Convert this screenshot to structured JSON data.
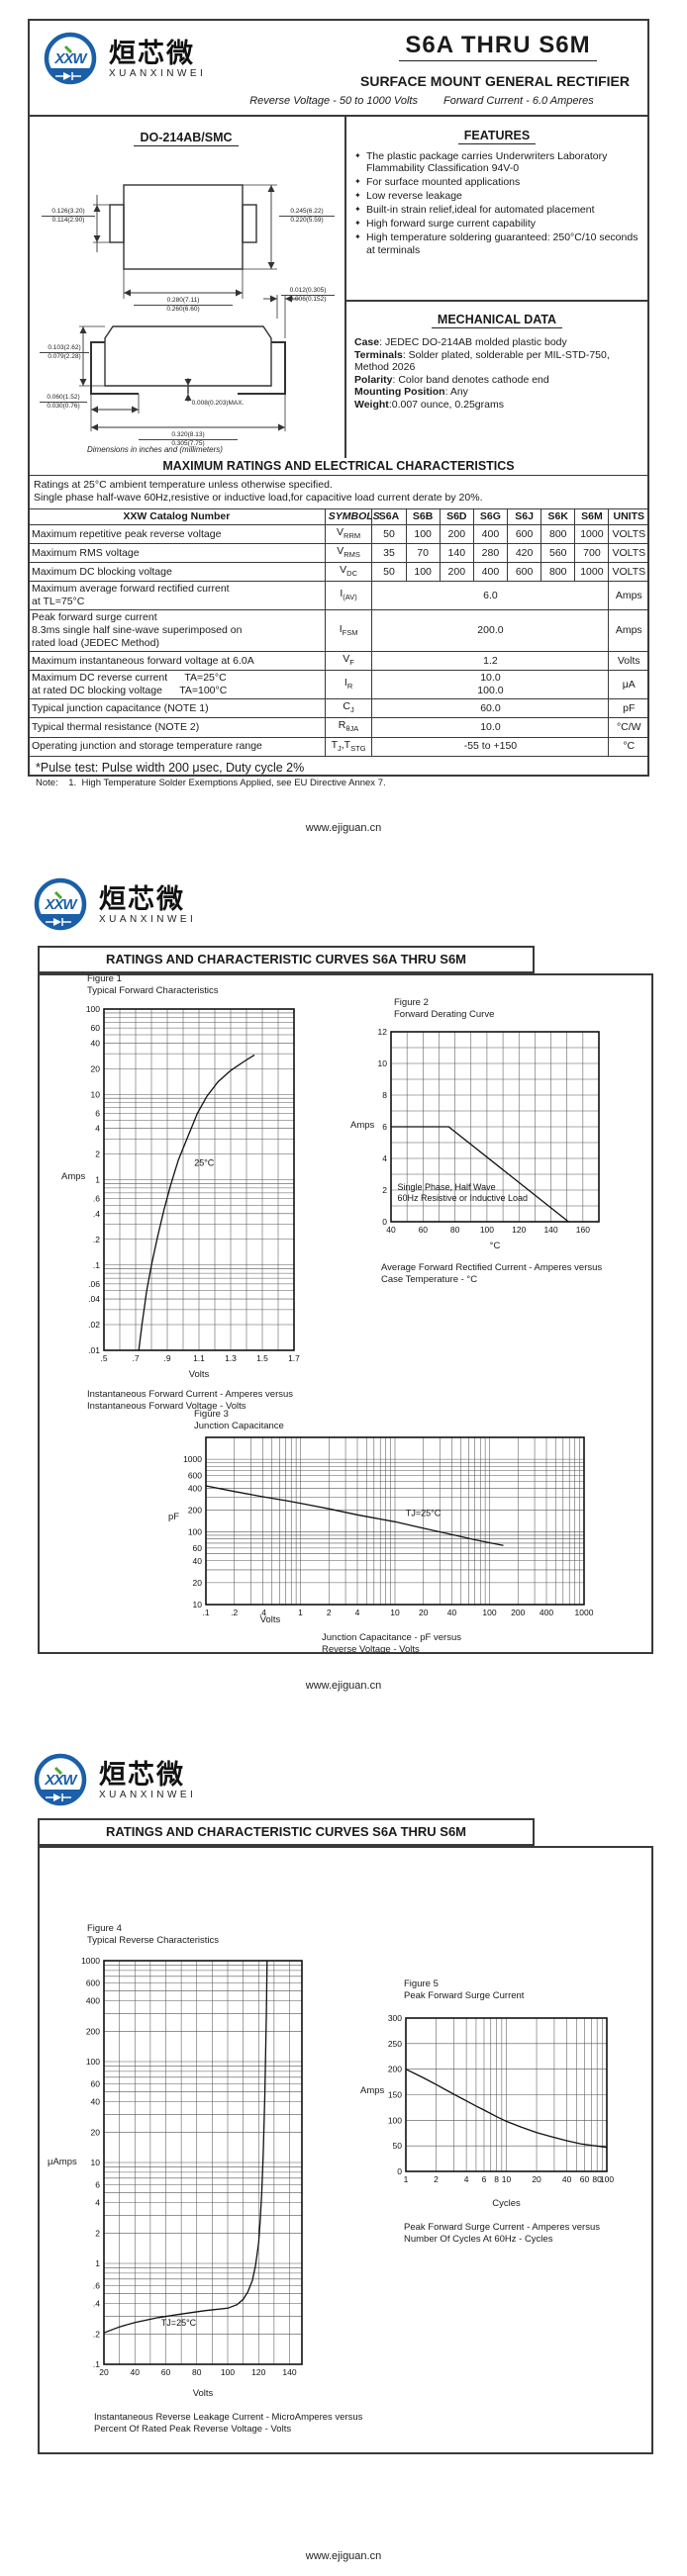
{
  "site_footer": "www.ejiguan.cn",
  "brand": {
    "logo_text": "XXW",
    "cn_name": "烜芯微",
    "en_name": "XUANXINWEI",
    "blue": "#1a5fa8",
    "green": "#4aa832"
  },
  "header": {
    "part_range": "S6A THRU S6M",
    "subtitle": "SURFACE MOUNT GENERAL RECTIFIER",
    "tagline_left": "Reverse Voltage - 50 to 1000 Volts",
    "tagline_right": "Forward Current - 6.0 Amperes"
  },
  "package": {
    "name": "DO-214AB/SMC",
    "bullet_icon": "✦",
    "dims": {
      "top_left": [
        "0.126(3.20)",
        "0.114(2.90)"
      ],
      "top_right": [
        "0.245(6.22)",
        "0.220(5.59)"
      ],
      "top_bottom": [
        "0.280(7.11)",
        "0.260(6.60)"
      ],
      "side_lead": [
        "0.012(0.305)",
        "0.006(0.152)"
      ],
      "side_height": [
        "0.103(2.62)",
        "0.079(2.28)"
      ],
      "side_foot": [
        "0.060(1.52)",
        "0.030(0.76)"
      ],
      "side_standoff": "0.008(0.203)MAX.",
      "side_width": [
        "0.320(8.13)",
        "0.305(7.75)"
      ]
    },
    "note": "Dimensions in inches and (millimeters)"
  },
  "features": {
    "title": "FEATURES",
    "items": [
      "The plastic package carries Underwriters Laboratory Flammability Classification 94V-0",
      "For surface mounted applications",
      "Low reverse leakage",
      "Built-in strain relief,ideal for automated placement",
      "High forward surge current capability",
      "High temperature soldering guaranteed: 250°C/10 seconds at terminals"
    ]
  },
  "mechanical": {
    "title": "MECHANICAL DATA",
    "lines": [
      {
        "label": "Case",
        "text": ": JEDEC DO-214AB molded plastic body"
      },
      {
        "label": "Terminals",
        "text": ": Solder plated, solderable per MIL-STD-750, Method 2026"
      },
      {
        "label": "Polarity",
        "text": ": Color band denotes cathode end"
      },
      {
        "label": "Mounting Position",
        "text": ": Any"
      },
      {
        "label": "Weight",
        "text": ":0.007 ounce, 0.25grams"
      }
    ]
  },
  "ratings": {
    "title": "MAXIMUM RATINGS AND ELECTRICAL CHARACTERISTICS",
    "note1": "Ratings at 25°C ambient temperature unless otherwise specified.",
    "note2": "Single phase half-wave 60Hz,resistive or inductive load,for capacitive load current derate by 20%.",
    "col_header": {
      "catalog": "XXW Catalog  Number",
      "symbols": "SYMBOLS",
      "parts": [
        "S6A",
        "S6B",
        "S6D",
        "S6G",
        "S6J",
        "S6K",
        "S6M"
      ],
      "units": "UNITS"
    },
    "rows": [
      {
        "label": [
          "Maximum repetitive peak reverse voltage"
        ],
        "sym": [
          {
            "text": "V"
          },
          {
            "text": "RRM",
            "sub": true
          }
        ],
        "values": [
          "50",
          "100",
          "200",
          "400",
          "600",
          "800",
          "1000"
        ],
        "units": "VOLTS"
      },
      {
        "label": [
          "Maximum RMS voltage"
        ],
        "sym": [
          {
            "text": "V"
          },
          {
            "text": "RMS",
            "sub": true
          }
        ],
        "values": [
          "35",
          "70",
          "140",
          "280",
          "420",
          "560",
          "700"
        ],
        "units": "VOLTS"
      },
      {
        "label": [
          "Maximum DC blocking voltage"
        ],
        "sym": [
          {
            "text": "V"
          },
          {
            "text": "DC",
            "sub": true
          }
        ],
        "values": [
          "50",
          "100",
          "200",
          "400",
          "600",
          "800",
          "1000"
        ],
        "units": "VOLTS"
      },
      {
        "label": [
          "Maximum average forward rectified current",
          "at TL=75°C"
        ],
        "sym": [
          {
            "text": "I"
          },
          {
            "text": "(AV)",
            "sub": true
          }
        ],
        "span": [
          "6.0"
        ],
        "units": "Amps"
      },
      {
        "label": [
          "Peak forward surge current",
          "8.3ms single half sine-wave superimposed on",
          "rated load (JEDEC Method)"
        ],
        "sym": [
          {
            "text": "I"
          },
          {
            "text": "FSM",
            "sub": true
          }
        ],
        "span": [
          "200.0"
        ],
        "units": "Amps"
      },
      {
        "label": [
          "Maximum instantaneous forward voltage at 6.0A"
        ],
        "sym": [
          {
            "text": "V"
          },
          {
            "text": "F",
            "sub": true
          }
        ],
        "span": [
          "1.2"
        ],
        "units": "Volts"
      },
      {
        "label": [
          "Maximum DC reverse current      TA=25°C",
          "at rated DC blocking voltage      TA=100°C"
        ],
        "sym": [
          {
            "text": "I"
          },
          {
            "text": "R",
            "sub": true
          }
        ],
        "span": [
          "10.0",
          "100.0"
        ],
        "units": "μA"
      },
      {
        "label": [
          "Typical junction capacitance (NOTE 1)"
        ],
        "sym": [
          {
            "text": "C"
          },
          {
            "text": "J",
            "sub": true
          }
        ],
        "span": [
          "60.0"
        ],
        "units": "pF"
      },
      {
        "label": [
          "Typical thermal resistance (NOTE 2)"
        ],
        "sym": [
          {
            "text": "R"
          },
          {
            "text": "θJA",
            "sub": true
          }
        ],
        "span": [
          "10.0"
        ],
        "units": "°C/W"
      },
      {
        "label": [
          "Operating junction and storage temperature range"
        ],
        "sym": [
          {
            "text": "T"
          },
          {
            "text": "J",
            "sub": true
          },
          {
            "text": ",T"
          },
          {
            "text": "STG",
            "sub": true
          }
        ],
        "span": [
          "-55 to +150"
        ],
        "units": "°C"
      }
    ],
    "pulse_note": "*Pulse test: Pulse width 200 μsec, Duty cycle 2%",
    "note_line": "Note:    1.  High Temperature Solder Exemptions Applied, see EU Directive Annex 7."
  },
  "curves_title": "RATINGS AND CHARACTERISTIC CURVES S6A THRU S6M",
  "chart_data": [
    {
      "figure": "Figure 1",
      "title": "Typical Forward Characteristics",
      "type": "line",
      "xlabel": "Volts",
      "ylabel": "Amps",
      "xscale": "linear",
      "yscale": "log",
      "xlim": [
        0.5,
        1.7
      ],
      "ylim": [
        0.01,
        100
      ],
      "xminor": 0.1,
      "xticks": [
        [
          0.5,
          ".5"
        ],
        [
          0.7,
          ".7"
        ],
        [
          0.9,
          ".9"
        ],
        [
          1.1,
          "1.1"
        ],
        [
          1.3,
          "1.3"
        ],
        [
          1.5,
          "1.5"
        ],
        [
          1.7,
          "1.7"
        ]
      ],
      "yticks": [
        [
          100,
          "100"
        ],
        [
          60,
          "60"
        ],
        [
          40,
          "40"
        ],
        [
          20,
          "20"
        ],
        [
          10,
          "10"
        ],
        [
          6,
          "6"
        ],
        [
          4,
          "4"
        ],
        [
          2,
          "2"
        ],
        [
          1,
          "1"
        ],
        [
          0.6,
          ".6"
        ],
        [
          0.4,
          ".4"
        ],
        [
          0.2,
          ".2"
        ],
        [
          0.1,
          ".1"
        ],
        [
          0.06,
          ".06"
        ],
        [
          0.04,
          ".04"
        ],
        [
          0.02,
          ".02"
        ],
        [
          0.01,
          ".01"
        ]
      ],
      "series": [
        {
          "name": "25°C",
          "points": [
            [
              0.72,
              0.01
            ],
            [
              0.74,
              0.02
            ],
            [
              0.77,
              0.05
            ],
            [
              0.8,
              0.1
            ],
            [
              0.84,
              0.22
            ],
            [
              0.88,
              0.45
            ],
            [
              0.92,
              0.85
            ],
            [
              0.97,
              1.7
            ],
            [
              1.03,
              3.2
            ],
            [
              1.09,
              6.0
            ],
            [
              1.15,
              9.5
            ],
            [
              1.22,
              14
            ],
            [
              1.3,
              19
            ],
            [
              1.38,
              24
            ],
            [
              1.45,
              29
            ]
          ]
        }
      ],
      "labels": [
        {
          "x": 1.07,
          "y": 1.45,
          "text": "25°C"
        }
      ],
      "caption": [
        "Instantaneous Forward Current - Amperes versus",
        "Instantaneous Forward Voltage - Volts"
      ]
    },
    {
      "figure": "Figure 2",
      "title": "Forward Derating Curve",
      "type": "line",
      "xlabel": "°C",
      "ylabel": "Amps",
      "xscale": "linear",
      "yscale": "linear",
      "xlim": [
        40,
        170
      ],
      "ylim": [
        0,
        12
      ],
      "xminor": 10,
      "yminor": 1,
      "xticks": [
        [
          40,
          "40"
        ],
        [
          60,
          "60"
        ],
        [
          80,
          "80"
        ],
        [
          100,
          "100"
        ],
        [
          120,
          "120"
        ],
        [
          140,
          "140"
        ],
        [
          160,
          "160"
        ]
      ],
      "yticks": [
        [
          0,
          "0"
        ],
        [
          2,
          "2"
        ],
        [
          4,
          "4"
        ],
        [
          6,
          "6"
        ],
        [
          8,
          "8"
        ],
        [
          10,
          "10"
        ],
        [
          12,
          "12"
        ]
      ],
      "series": [
        {
          "name": "derating",
          "points": [
            [
              40,
              6
            ],
            [
              76,
              6
            ],
            [
              151,
              0
            ]
          ]
        }
      ],
      "labels": [
        {
          "x": 44,
          "y": 2.0,
          "text": "Single Phase, Half Wave"
        },
        {
          "x": 44,
          "y": 1.3,
          "text": "60Hz Resistive or Inductive Load"
        }
      ],
      "caption": [
        "Average Forward Rectified Current  -  Amperes versus",
        "Case Temperature  - °C"
      ]
    },
    {
      "figure": "Figure 3",
      "title": "Junction Capacitance",
      "type": "line",
      "xlabel": "Volts",
      "ylabel": "pF",
      "xscale": "log",
      "yscale": "log",
      "xlim": [
        0.1,
        1000
      ],
      "ylim": [
        10,
        2000
      ],
      "xticks": [
        [
          0.1,
          ".1"
        ],
        [
          0.2,
          ".2"
        ],
        [
          0.4,
          ".4"
        ],
        [
          1,
          "1"
        ],
        [
          2,
          "2"
        ],
        [
          4,
          "4"
        ],
        [
          10,
          "10"
        ],
        [
          20,
          "20"
        ],
        [
          40,
          "40"
        ],
        [
          100,
          "100"
        ],
        [
          200,
          "200"
        ],
        [
          400,
          "400"
        ],
        [
          1000,
          "1000"
        ]
      ],
      "yticks": [
        [
          1000,
          "1000"
        ],
        [
          600,
          "600"
        ],
        [
          400,
          "400"
        ],
        [
          200,
          "200"
        ],
        [
          100,
          "100"
        ],
        [
          60,
          "60"
        ],
        [
          40,
          "40"
        ],
        [
          20,
          "20"
        ],
        [
          10,
          "10"
        ]
      ],
      "series": [
        {
          "name": "TJ=25°C",
          "points": [
            [
              0.1,
              430
            ],
            [
              0.2,
              360
            ],
            [
              0.4,
              305
            ],
            [
              0.7,
              270
            ],
            [
              1,
              248
            ],
            [
              2,
              208
            ],
            [
              4,
              172
            ],
            [
              7,
              150
            ],
            [
              10,
              138
            ],
            [
              20,
              112
            ],
            [
              40,
              92
            ],
            [
              70,
              78
            ],
            [
              100,
              71
            ],
            [
              140,
              65
            ]
          ]
        }
      ],
      "labels": [
        {
          "x": 13,
          "y": 165,
          "text": "TJ=25°C"
        }
      ],
      "caption": [
        "Junction Capacitance - pF versus",
        "Reverse Voltage - Volts"
      ]
    },
    {
      "figure": "Figure 4",
      "title": "Typical Reverse Characteristics",
      "type": "line",
      "xlabel": "Volts",
      "ylabel": "μAmps",
      "xscale": "linear",
      "yscale": "log",
      "xlim": [
        20,
        148
      ],
      "ylim": [
        0.1,
        1000
      ],
      "xminor": 10,
      "xticks": [
        [
          20,
          "20"
        ],
        [
          40,
          "40"
        ],
        [
          60,
          "60"
        ],
        [
          80,
          "80"
        ],
        [
          100,
          "100"
        ],
        [
          120,
          "120"
        ],
        [
          140,
          "140"
        ]
      ],
      "yticks": [
        [
          1000,
          "1000"
        ],
        [
          600,
          "600"
        ],
        [
          400,
          "400"
        ],
        [
          200,
          "200"
        ],
        [
          100,
          "100"
        ],
        [
          60,
          "60"
        ],
        [
          40,
          "40"
        ],
        [
          20,
          "20"
        ],
        [
          10,
          "10"
        ],
        [
          6,
          "6"
        ],
        [
          4,
          "4"
        ],
        [
          2,
          "2"
        ],
        [
          1,
          "1"
        ],
        [
          0.6,
          ".6"
        ],
        [
          0.4,
          ".4"
        ],
        [
          0.2,
          ".2"
        ],
        [
          0.1,
          ".1"
        ]
      ],
      "series": [
        {
          "name": "TJ=25°C",
          "points": [
            [
              20,
              0.205
            ],
            [
              30,
              0.235
            ],
            [
              40,
              0.26
            ],
            [
              55,
              0.29
            ],
            [
              70,
              0.315
            ],
            [
              85,
              0.34
            ],
            [
              100,
              0.36
            ],
            [
              106,
              0.39
            ],
            [
              110,
              0.44
            ],
            [
              113,
              0.52
            ],
            [
              116,
              0.68
            ],
            [
              118,
              0.95
            ],
            [
              120,
              1.6
            ],
            [
              121,
              2.6
            ],
            [
              122,
              5
            ],
            [
              123,
              12
            ],
            [
              124,
              45
            ],
            [
              125,
              300
            ],
            [
              125.5,
              1000
            ]
          ]
        }
      ],
      "labels": [
        {
          "x": 57,
          "y": 0.24,
          "text": "TJ=25°C"
        }
      ],
      "caption": [
        "Instantaneous Reverse Leakage Current - MicroAmperes versus",
        "Percent Of Rated Peak Reverse Voltage - Volts"
      ]
    },
    {
      "figure": "Figure 5",
      "title": "Peak Forward Surge Current",
      "type": "line",
      "xlabel": "Cycles",
      "ylabel": "Amps",
      "xscale": "log",
      "yscale": "linear",
      "xlim": [
        1,
        100
      ],
      "ylim": [
        0,
        300
      ],
      "yminor": 50,
      "xticks": [
        [
          1,
          "1"
        ],
        [
          2,
          "2"
        ],
        [
          4,
          "4"
        ],
        [
          6,
          "6"
        ],
        [
          8,
          "8"
        ],
        [
          10,
          "10"
        ],
        [
          20,
          "20"
        ],
        [
          40,
          "40"
        ],
        [
          60,
          "60"
        ],
        [
          80,
          "80"
        ],
        [
          100,
          "100"
        ]
      ],
      "yticks": [
        [
          0,
          "0"
        ],
        [
          50,
          "50"
        ],
        [
          100,
          "100"
        ],
        [
          150,
          "150"
        ],
        [
          200,
          "200"
        ],
        [
          250,
          "250"
        ],
        [
          300,
          "300"
        ]
      ],
      "series": [
        {
          "name": "surge",
          "points": [
            [
              1,
              200
            ],
            [
              1.5,
              183
            ],
            [
              2,
              170
            ],
            [
              3,
              151
            ],
            [
              4,
              138
            ],
            [
              5,
              128
            ],
            [
              6,
              120
            ],
            [
              8,
              107
            ],
            [
              10,
              98
            ],
            [
              14,
              87
            ],
            [
              20,
              76
            ],
            [
              28,
              68
            ],
            [
              40,
              60
            ],
            [
              55,
              54
            ],
            [
              70,
              51
            ],
            [
              85,
              49
            ],
            [
              100,
              47
            ]
          ]
        }
      ],
      "labels": [],
      "caption": [
        "Peak Forward Surge Current - Amperes versus",
        "Number Of Cycles At 60Hz - Cycles"
      ]
    }
  ]
}
